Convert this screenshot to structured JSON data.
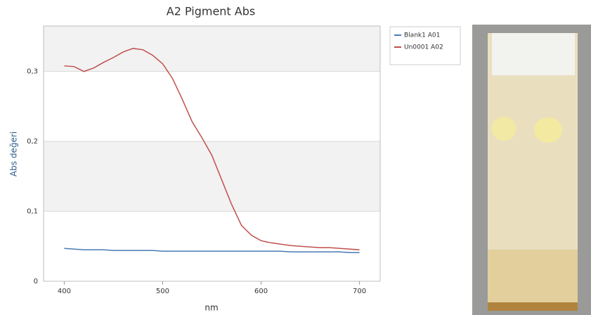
{
  "chart_data": {
    "type": "line",
    "title": "A2 Pigment Abs",
    "x_label": "nm",
    "y_label": "Abs değeri",
    "x": [
      400,
      410,
      420,
      430,
      440,
      450,
      460,
      470,
      480,
      490,
      500,
      510,
      520,
      530,
      540,
      550,
      560,
      570,
      580,
      590,
      600,
      610,
      620,
      630,
      640,
      650,
      660,
      670,
      680,
      690,
      700
    ],
    "series": [
      {
        "name": "Blank1 A01",
        "color": "#4a7ab5",
        "values": [
          0.047,
          0.046,
          0.045,
          0.045,
          0.045,
          0.044,
          0.044,
          0.044,
          0.044,
          0.044,
          0.043,
          0.043,
          0.043,
          0.043,
          0.043,
          0.043,
          0.043,
          0.043,
          0.043,
          0.043,
          0.043,
          0.043,
          0.043,
          0.042,
          0.042,
          0.042,
          0.042,
          0.042,
          0.042,
          0.041,
          0.041
        ]
      },
      {
        "name": "Un0001 A02",
        "color": "#c0504d",
        "values": [
          0.308,
          0.307,
          0.3,
          0.305,
          0.313,
          0.32,
          0.328,
          0.333,
          0.331,
          0.323,
          0.311,
          0.29,
          0.26,
          0.228,
          0.205,
          0.18,
          0.145,
          0.11,
          0.08,
          0.066,
          0.058,
          0.055,
          0.053,
          0.051,
          0.05,
          0.049,
          0.048,
          0.048,
          0.047,
          0.046,
          0.045
        ]
      }
    ],
    "xlim": [
      379,
      721
    ],
    "xticks": [
      400,
      500,
      600,
      700
    ],
    "ylim": [
      0,
      0.365
    ],
    "yticks": [
      0,
      {
        "value": 0.1,
        "label": "0,1"
      },
      {
        "value": 0.2,
        "label": "0,2"
      },
      {
        "value": 0.3,
        "label": "0,3"
      }
    ],
    "grid": "bands",
    "legend": "right"
  }
}
